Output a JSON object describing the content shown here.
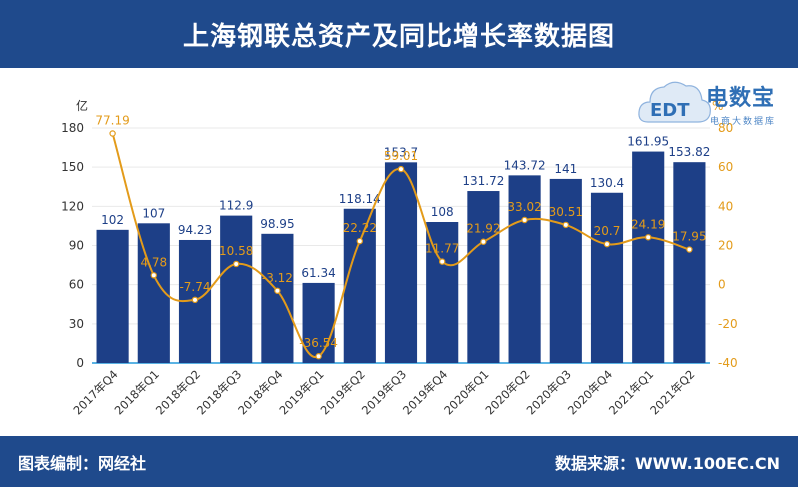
{
  "header": {
    "title": "上海钢联总资产及同比增长率数据图"
  },
  "footer": {
    "left": "图表编制：网经社",
    "right": "数据来源：WWW.100EC.CN"
  },
  "logo": {
    "name": "电数宝",
    "sub": "电商大数据库",
    "letters": "EDT"
  },
  "colors": {
    "bar": "#1d3f87",
    "line": "#e39b1a",
    "header_bg": "#1f4a8c",
    "bar_label": "#1d3f87",
    "line_label": "#e39b1a"
  },
  "chart_data": {
    "type": "bar",
    "categories": [
      "2017年Q4",
      "2018年Q1",
      "2018年Q2",
      "2018年Q3",
      "2018年Q4",
      "2019年Q1",
      "2019年Q2",
      "2019年Q3",
      "2019年Q4",
      "2020年Q1",
      "2020年Q2",
      "2020年Q3",
      "2020年Q4",
      "2021年Q1",
      "2021年Q2"
    ],
    "series": [
      {
        "type": "bar",
        "axis": "left",
        "values": [
          102,
          107,
          94.23,
          112.9,
          98.95,
          61.34,
          118.14,
          153.7,
          108,
          131.72,
          143.72,
          141,
          130.4,
          161.95,
          153.82
        ],
        "labels": [
          "102",
          "107",
          "94.23",
          "112.9",
          "98.95",
          "61.34",
          "118.14",
          "153.7",
          "108",
          "131.72",
          "143.72",
          "141",
          "130.4",
          "161.95",
          "153.82"
        ]
      },
      {
        "type": "line",
        "axis": "right",
        "values": [
          77.19,
          4.78,
          -7.74,
          10.58,
          -3.12,
          -36.54,
          22.22,
          59.01,
          11.77,
          21.92,
          33.02,
          30.51,
          20.7,
          24.19,
          17.95
        ],
        "labels": [
          "77.19",
          "4.78",
          "-7.74",
          "10.58",
          "-3.12",
          "-36.54",
          "22.22",
          "59.01",
          "11.77",
          "21.92",
          "33.02",
          "30.51",
          "20.7",
          "24.19",
          "17.95"
        ]
      }
    ],
    "y_left": {
      "unit": "亿",
      "ylim": [
        0,
        180
      ],
      "ticks": [
        "0",
        "30",
        "60",
        "90",
        "120",
        "150",
        "180"
      ]
    },
    "y_right": {
      "unit": "%",
      "ylim": [
        -40,
        80
      ],
      "ticks": [
        "-40",
        "-20",
        "0",
        "20",
        "40",
        "60",
        "80"
      ]
    },
    "grid": true
  }
}
